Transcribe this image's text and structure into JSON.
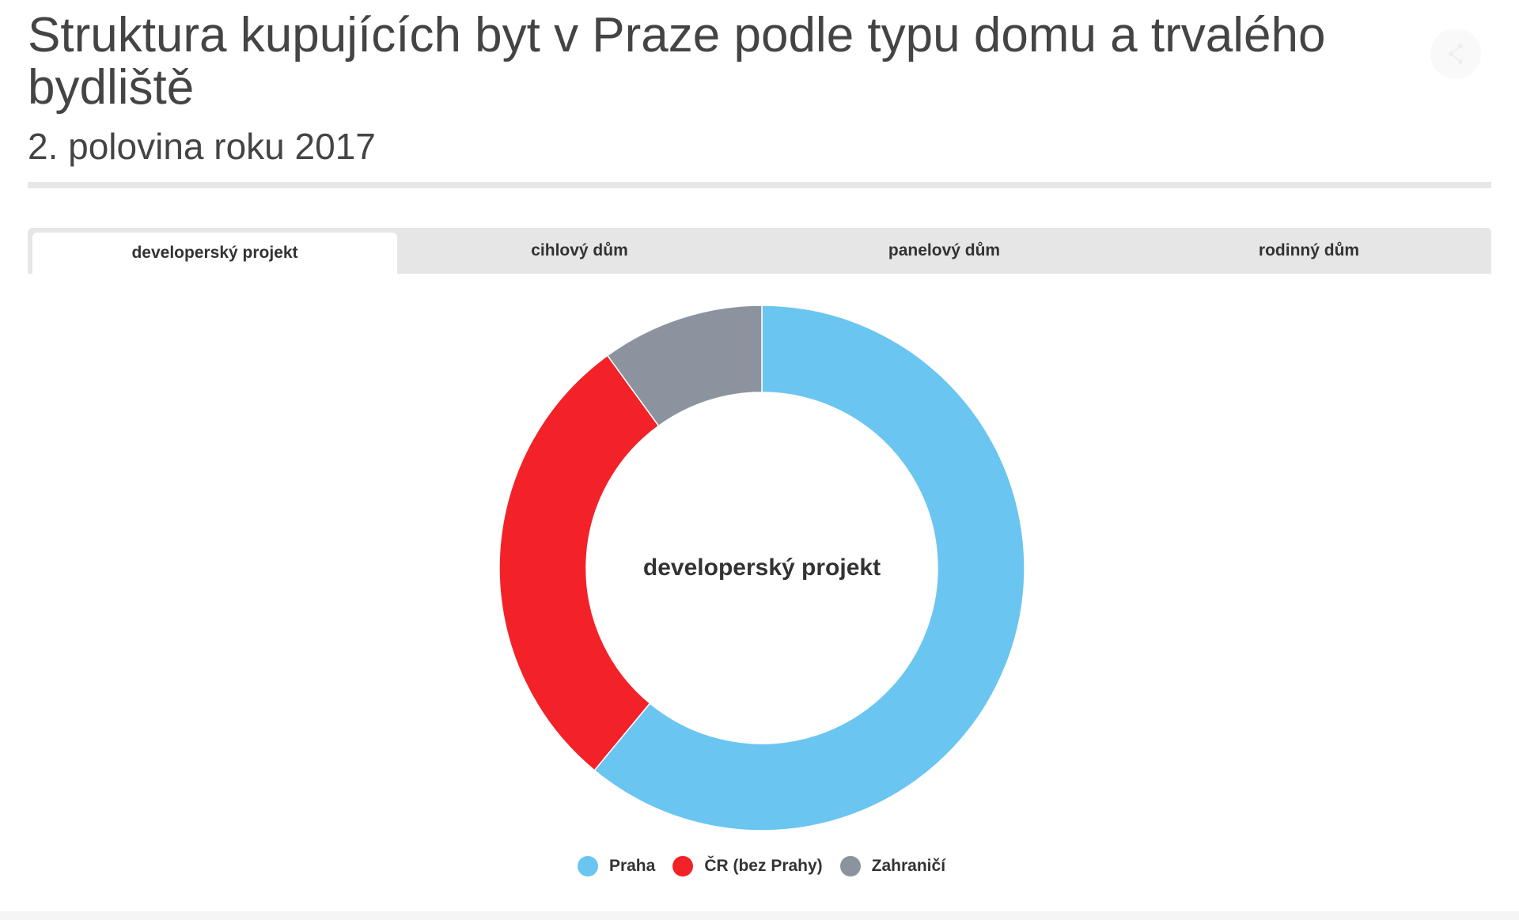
{
  "header": {
    "title": "Struktura kupujících byt v Praze podle typu domu a trvalého bydliště",
    "subtitle": "2. polovina roku 2017"
  },
  "tabs": [
    {
      "label": "developerský projekt",
      "active": true
    },
    {
      "label": "cihlový dům",
      "active": false
    },
    {
      "label": "panelový dům",
      "active": false
    },
    {
      "label": "rodinný dům",
      "active": false
    }
  ],
  "icons": {
    "share": "share-icon"
  },
  "chart_data": {
    "type": "pie",
    "variant": "donut",
    "center_label": "developerský projekt",
    "categories": [
      "Praha",
      "ČR (bez Prahy)",
      "Zahraničí"
    ],
    "values": [
      61,
      29,
      10
    ],
    "colors": [
      "#6ac5f1",
      "#f22228",
      "#8b949e"
    ],
    "legend_position": "bottom-center"
  }
}
